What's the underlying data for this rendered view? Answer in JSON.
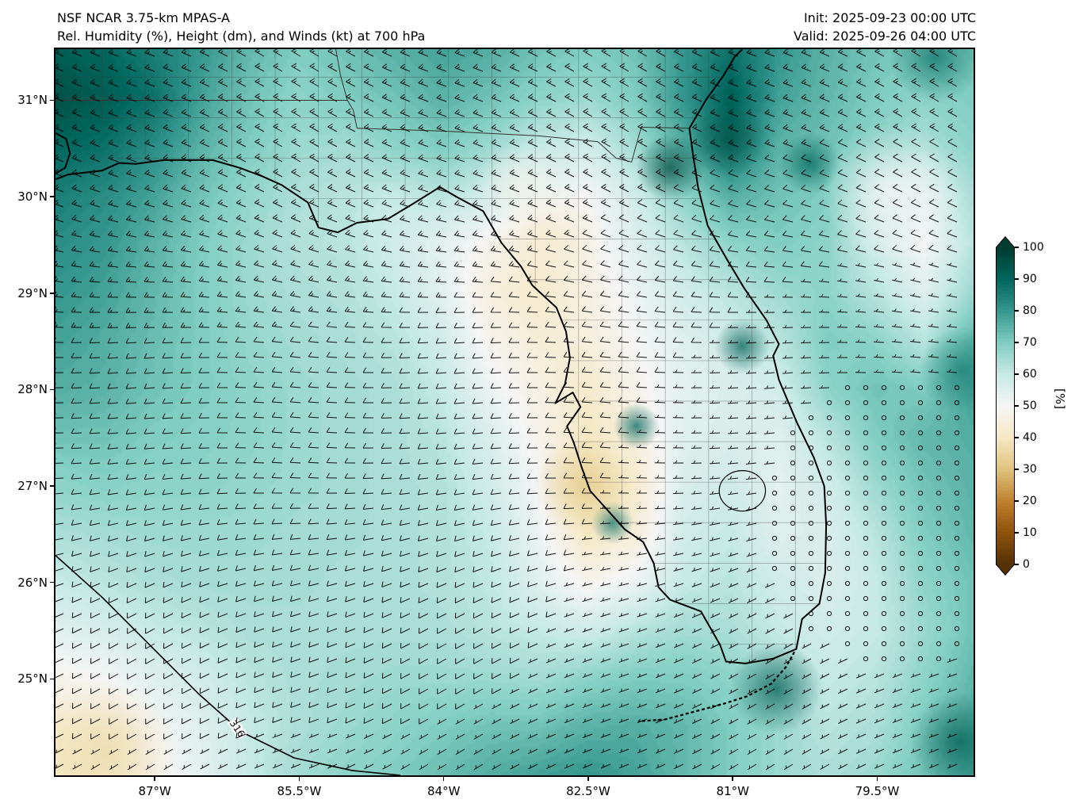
{
  "header": {
    "model": "NSF NCAR 3.75-km MPAS-A",
    "field": "Rel. Humidity (%), Height (dm), and Winds (kt) at 700 hPa",
    "init": "Init: 2025-09-23 00:00 UTC",
    "valid": "Valid: 2025-09-26 04:00 UTC"
  },
  "axes": {
    "lat_ticks": [
      {
        "label": "31°N",
        "value": 31
      },
      {
        "label": "30°N",
        "value": 30
      },
      {
        "label": "29°N",
        "value": 29
      },
      {
        "label": "28°N",
        "value": 28
      },
      {
        "label": "27°N",
        "value": 27
      },
      {
        "label": "26°N",
        "value": 26
      },
      {
        "label": "25°N",
        "value": 25
      }
    ],
    "lon_ticks": [
      {
        "label": "87°W",
        "value": -87
      },
      {
        "label": "85.5°W",
        "value": -85.5
      },
      {
        "label": "84°W",
        "value": -84
      },
      {
        "label": "82.5°W",
        "value": -82.5
      },
      {
        "label": "81°W",
        "value": -81
      },
      {
        "label": "79.5°W",
        "value": -79.5
      }
    ]
  },
  "colorbar": {
    "label": "[%]",
    "ticks": [
      0,
      10,
      20,
      30,
      40,
      50,
      60,
      70,
      80,
      90,
      100
    ],
    "colors": [
      "#543005",
      "#8c510a",
      "#bf812d",
      "#dfc27d",
      "#f6e8c3",
      "#f5f5f5",
      "#c7eae5",
      "#80cdc1",
      "#35978f",
      "#01665e",
      "#003c30"
    ]
  },
  "chart_data": {
    "type": "heatmap",
    "quantity": "Relative Humidity",
    "units": "%",
    "level_hpa": 700,
    "extent": {
      "lon_min": -88.03,
      "lon_max": -78.5,
      "lat_min": 24.0,
      "lat_max": 31.53
    },
    "rh_grid": {
      "lons": [
        -88.03,
        -87.5,
        -87.0,
        -86.5,
        -86.0,
        -85.5,
        -85.0,
        -84.5,
        -84.0,
        -83.5,
        -83.0,
        -82.5,
        -82.0,
        -81.5,
        -81.0,
        -80.5,
        -80.0,
        -79.5,
        -79.0,
        -78.5
      ],
      "lats": [
        31.53,
        31.0,
        30.5,
        30.0,
        29.5,
        29.0,
        28.5,
        28.0,
        27.5,
        27.0,
        26.5,
        26.0,
        25.5,
        25.0,
        24.5,
        24.0
      ],
      "values": [
        [
          92,
          90,
          85,
          80,
          74,
          70,
          72,
          75,
          78,
          76,
          72,
          70,
          72,
          80,
          88,
          80,
          75,
          72,
          70,
          72
        ],
        [
          95,
          92,
          88,
          78,
          72,
          68,
          70,
          72,
          75,
          72,
          68,
          66,
          70,
          80,
          92,
          78,
          74,
          70,
          68,
          70
        ],
        [
          90,
          88,
          82,
          75,
          70,
          66,
          65,
          68,
          70,
          66,
          60,
          58,
          65,
          76,
          86,
          75,
          72,
          68,
          64,
          68
        ],
        [
          85,
          82,
          78,
          72,
          67,
          64,
          62,
          60,
          62,
          58,
          52,
          50,
          58,
          68,
          76,
          72,
          70,
          60,
          54,
          64
        ],
        [
          82,
          80,
          75,
          70,
          66,
          63,
          62,
          58,
          54,
          48,
          45,
          48,
          55,
          62,
          68,
          70,
          68,
          58,
          50,
          62
        ],
        [
          80,
          78,
          74,
          70,
          66,
          64,
          63,
          60,
          54,
          45,
          42,
          46,
          52,
          58,
          62,
          66,
          68,
          62,
          55,
          66
        ],
        [
          78,
          76,
          73,
          70,
          67,
          65,
          64,
          62,
          58,
          48,
          44,
          45,
          50,
          55,
          58,
          62,
          70,
          68,
          62,
          74
        ],
        [
          76,
          75,
          72,
          70,
          68,
          66,
          65,
          64,
          60,
          52,
          46,
          42,
          48,
          54,
          56,
          58,
          68,
          72,
          70,
          78
        ],
        [
          72,
          72,
          70,
          69,
          68,
          66,
          65,
          64,
          62,
          56,
          48,
          40,
          45,
          55,
          56,
          55,
          62,
          70,
          74,
          76
        ],
        [
          68,
          69,
          68,
          68,
          67,
          66,
          65,
          64,
          63,
          58,
          50,
          38,
          42,
          56,
          58,
          54,
          58,
          66,
          72,
          75
        ],
        [
          64,
          65,
          66,
          66,
          66,
          65,
          65,
          64,
          63,
          60,
          52,
          40,
          44,
          58,
          60,
          55,
          56,
          62,
          70,
          74
        ],
        [
          60,
          62,
          64,
          65,
          65,
          65,
          64,
          64,
          63,
          61,
          55,
          48,
          52,
          60,
          62,
          58,
          56,
          60,
          68,
          72
        ],
        [
          55,
          57,
          60,
          62,
          64,
          64,
          64,
          64,
          64,
          62,
          60,
          58,
          62,
          65,
          64,
          60,
          58,
          60,
          66,
          72
        ],
        [
          48,
          50,
          55,
          58,
          62,
          64,
          65,
          66,
          66,
          66,
          65,
          68,
          70,
          70,
          68,
          64,
          60,
          62,
          68,
          74
        ],
        [
          42,
          45,
          50,
          55,
          60,
          64,
          66,
          68,
          70,
          72,
          72,
          75,
          76,
          74,
          70,
          66,
          62,
          64,
          70,
          76
        ],
        [
          40,
          42,
          48,
          54,
          60,
          65,
          68,
          70,
          73,
          76,
          78,
          80,
          78,
          74,
          70,
          66,
          64,
          66,
          72,
          78
        ]
      ]
    },
    "spots": [
      [
        -81.65,
        30.3,
        97,
        0.22
      ],
      [
        -81.05,
        30.6,
        95,
        0.25
      ],
      [
        -80.9,
        28.45,
        92,
        0.18
      ],
      [
        -82.0,
        27.62,
        90,
        0.15
      ],
      [
        -82.25,
        26.62,
        88,
        0.14
      ],
      [
        -80.55,
        24.9,
        92,
        0.3
      ],
      [
        -78.65,
        24.35,
        92,
        0.32
      ],
      [
        -78.62,
        28.2,
        85,
        0.28
      ],
      [
        -78.9,
        31.45,
        88,
        0.3
      ],
      [
        -80.2,
        30.35,
        90,
        0.2
      ],
      [
        -82.55,
        27.0,
        32,
        0.32
      ],
      [
        -82.9,
        29.55,
        42,
        0.35
      ],
      [
        -87.5,
        24.25,
        36,
        0.45
      ],
      [
        -79.35,
        30.05,
        50,
        0.45
      ],
      [
        -83.2,
        30.1,
        48,
        0.3
      ]
    ],
    "wind": {
      "units": "kt",
      "dir_north_deg": 300,
      "dir_south_deg": 238,
      "speed_north_kt": 16,
      "speed_south_kt": 7,
      "calm_center": {
        "lon": -79.2,
        "lat": 26.8
      },
      "calm_radius_deg": 2.8
    },
    "height_contour": {
      "label": "316",
      "units": "dm",
      "points": [
        [
          -88.03,
          26.28
        ],
        [
          -87.55,
          25.85
        ],
        [
          -87.05,
          25.35
        ],
        [
          -86.55,
          24.85
        ],
        [
          -86.1,
          24.45
        ],
        [
          -85.55,
          24.18
        ],
        [
          -84.95,
          24.05
        ],
        [
          -84.45,
          24.0
        ]
      ],
      "label_pos": [
        -86.15,
        24.48
      ],
      "label_angle_deg": 55
    }
  },
  "map_shapes": {
    "coastlines": [
      [
        [
          -88.03,
          30.18
        ],
        [
          -87.9,
          30.23
        ],
        [
          -87.55,
          30.27
        ],
        [
          -87.37,
          30.35
        ]
      ],
      [
        [
          -88.03,
          30.24
        ],
        [
          -87.93,
          30.3
        ],
        [
          -87.88,
          30.45
        ],
        [
          -87.92,
          30.6
        ],
        [
          -88.03,
          30.66
        ]
      ],
      [
        [
          -87.37,
          30.35
        ],
        [
          -87.2,
          30.34
        ],
        [
          -86.9,
          30.38
        ],
        [
          -86.4,
          30.38
        ],
        [
          -86.12,
          30.3
        ],
        [
          -85.88,
          30.21
        ],
        [
          -85.68,
          30.12
        ],
        [
          -85.41,
          29.94
        ],
        [
          -85.3,
          29.68
        ],
        [
          -85.1,
          29.63
        ],
        [
          -84.9,
          29.73
        ],
        [
          -84.58,
          29.77
        ],
        [
          -84.33,
          29.92
        ],
        [
          -84.04,
          30.1
        ],
        [
          -83.87,
          30.0
        ],
        [
          -83.59,
          29.85
        ],
        [
          -83.4,
          29.52
        ],
        [
          -83.2,
          29.28
        ],
        [
          -83.08,
          29.08
        ],
        [
          -82.83,
          28.85
        ],
        [
          -82.73,
          28.6
        ],
        [
          -82.69,
          28.33
        ],
        [
          -82.74,
          28.06
        ],
        [
          -82.84,
          27.86
        ],
        [
          -82.66,
          27.97
        ],
        [
          -82.58,
          27.82
        ],
        [
          -82.72,
          27.62
        ],
        [
          -82.65,
          27.45
        ],
        [
          -82.57,
          27.2
        ],
        [
          -82.48,
          26.95
        ],
        [
          -82.3,
          26.75
        ],
        [
          -82.12,
          26.55
        ],
        [
          -81.93,
          26.42
        ],
        [
          -81.82,
          26.2
        ],
        [
          -81.77,
          25.95
        ],
        [
          -81.65,
          25.82
        ],
        [
          -81.33,
          25.7
        ],
        [
          -81.13,
          25.35
        ],
        [
          -81.07,
          25.18
        ],
        [
          -80.87,
          25.16
        ],
        [
          -80.58,
          25.21
        ],
        [
          -80.34,
          25.31
        ],
        [
          -80.28,
          25.62
        ],
        [
          -80.1,
          25.78
        ],
        [
          -80.04,
          26.1
        ],
        [
          -80.03,
          26.6
        ],
        [
          -80.05,
          27.0
        ],
        [
          -80.16,
          27.3
        ],
        [
          -80.33,
          27.65
        ],
        [
          -80.52,
          28.1
        ],
        [
          -80.58,
          28.35
        ],
        [
          -80.52,
          28.47
        ],
        [
          -80.65,
          28.72
        ],
        [
          -80.88,
          29.05
        ],
        [
          -81.06,
          29.35
        ],
        [
          -81.26,
          29.7
        ],
        [
          -81.36,
          30.1
        ],
        [
          -81.41,
          30.42
        ],
        [
          -81.45,
          30.71
        ]
      ],
      [
        [
          -81.45,
          30.71
        ],
        [
          -81.28,
          31.0
        ],
        [
          -81.1,
          31.25
        ],
        [
          -80.98,
          31.45
        ],
        [
          -80.9,
          31.53
        ]
      ]
    ],
    "state_borders": [
      [
        [
          -88.03,
          31.0
        ],
        [
          -85.0,
          31.0
        ],
        [
          -84.94,
          30.9
        ],
        [
          -84.9,
          30.71
        ],
        [
          -84.0,
          30.68
        ],
        [
          -83.0,
          30.63
        ],
        [
          -82.4,
          30.57
        ],
        [
          -82.21,
          30.4
        ],
        [
          -82.05,
          30.36
        ],
        [
          -82.02,
          30.47
        ],
        [
          -81.95,
          30.72
        ],
        [
          -81.45,
          30.71
        ]
      ],
      [
        [
          -85.0,
          31.0
        ],
        [
          -85.07,
          31.25
        ],
        [
          -85.12,
          31.53
        ]
      ]
    ],
    "keys_line": [
      [
        -80.36,
        25.28
      ],
      [
        -80.45,
        25.12
      ],
      [
        -80.6,
        24.95
      ],
      [
        -80.85,
        24.82
      ],
      [
        -81.1,
        24.74
      ],
      [
        -81.4,
        24.66
      ],
      [
        -81.7,
        24.58
      ],
      [
        -81.98,
        24.56
      ]
    ],
    "lake_okeechobee": {
      "lon": -80.9,
      "lat": 26.95,
      "rx_deg": 0.24,
      "ry_deg": 0.21
    },
    "clip_polygons": [
      [
        [
          -87.6,
          31.0
        ],
        [
          -87.6,
          30.87
        ],
        [
          -87.45,
          30.5
        ],
        [
          -87.37,
          30.35
        ],
        [
          -87.2,
          30.34
        ],
        [
          -86.9,
          30.38
        ],
        [
          -86.4,
          30.38
        ],
        [
          -86.12,
          30.3
        ],
        [
          -85.88,
          30.21
        ],
        [
          -85.68,
          30.12
        ],
        [
          -85.41,
          29.94
        ],
        [
          -85.3,
          29.68
        ],
        [
          -85.1,
          29.63
        ],
        [
          -84.9,
          29.73
        ],
        [
          -84.58,
          29.77
        ],
        [
          -84.33,
          29.92
        ],
        [
          -84.04,
          30.1
        ],
        [
          -83.87,
          30.0
        ],
        [
          -83.59,
          29.85
        ],
        [
          -83.4,
          29.52
        ],
        [
          -83.2,
          29.28
        ],
        [
          -83.08,
          29.08
        ],
        [
          -82.83,
          28.85
        ],
        [
          -82.73,
          28.6
        ],
        [
          -82.69,
          28.33
        ],
        [
          -82.74,
          28.06
        ],
        [
          -82.84,
          27.86
        ],
        [
          -82.58,
          27.82
        ],
        [
          -82.72,
          27.62
        ],
        [
          -82.65,
          27.45
        ],
        [
          -82.57,
          27.2
        ],
        [
          -82.48,
          26.95
        ],
        [
          -82.3,
          26.75
        ],
        [
          -82.12,
          26.55
        ],
        [
          -81.93,
          26.42
        ],
        [
          -81.82,
          26.2
        ],
        [
          -81.77,
          25.95
        ],
        [
          -81.65,
          25.82
        ],
        [
          -81.33,
          25.7
        ],
        [
          -81.13,
          25.35
        ],
        [
          -81.07,
          25.18
        ],
        [
          -80.87,
          25.16
        ],
        [
          -80.58,
          25.21
        ],
        [
          -80.34,
          25.31
        ],
        [
          -80.28,
          25.62
        ],
        [
          -80.1,
          25.78
        ],
        [
          -80.04,
          26.1
        ],
        [
          -80.03,
          26.6
        ],
        [
          -80.05,
          27.0
        ],
        [
          -80.16,
          27.3
        ],
        [
          -80.33,
          27.65
        ],
        [
          -80.52,
          28.1
        ],
        [
          -80.58,
          28.35
        ],
        [
          -80.52,
          28.47
        ],
        [
          -80.65,
          28.72
        ],
        [
          -80.88,
          29.05
        ],
        [
          -81.06,
          29.35
        ],
        [
          -81.26,
          29.7
        ],
        [
          -81.36,
          30.1
        ],
        [
          -81.41,
          30.42
        ],
        [
          -81.45,
          30.71
        ],
        [
          -81.95,
          30.72
        ],
        [
          -82.02,
          30.47
        ],
        [
          -82.05,
          30.36
        ],
        [
          -82.21,
          30.4
        ],
        [
          -82.4,
          30.57
        ],
        [
          -83.0,
          30.63
        ],
        [
          -84.0,
          30.68
        ],
        [
          -84.9,
          30.71
        ],
        [
          -85.0,
          31.0
        ]
      ],
      [
        [
          -88.03,
          31.53
        ],
        [
          -80.9,
          31.53
        ],
        [
          -80.98,
          31.4
        ],
        [
          -81.15,
          31.15
        ],
        [
          -81.3,
          30.95
        ],
        [
          -81.45,
          30.71
        ],
        [
          -81.95,
          30.72
        ],
        [
          -82.05,
          30.36
        ],
        [
          -82.21,
          30.4
        ],
        [
          -82.4,
          30.57
        ],
        [
          -83.0,
          30.63
        ],
        [
          -84.0,
          30.68
        ],
        [
          -84.9,
          30.71
        ],
        [
          -85.0,
          31.0
        ],
        [
          -87.6,
          31.0
        ],
        [
          -87.6,
          30.85
        ],
        [
          -87.95,
          30.6
        ],
        [
          -88.03,
          30.55
        ]
      ]
    ]
  }
}
